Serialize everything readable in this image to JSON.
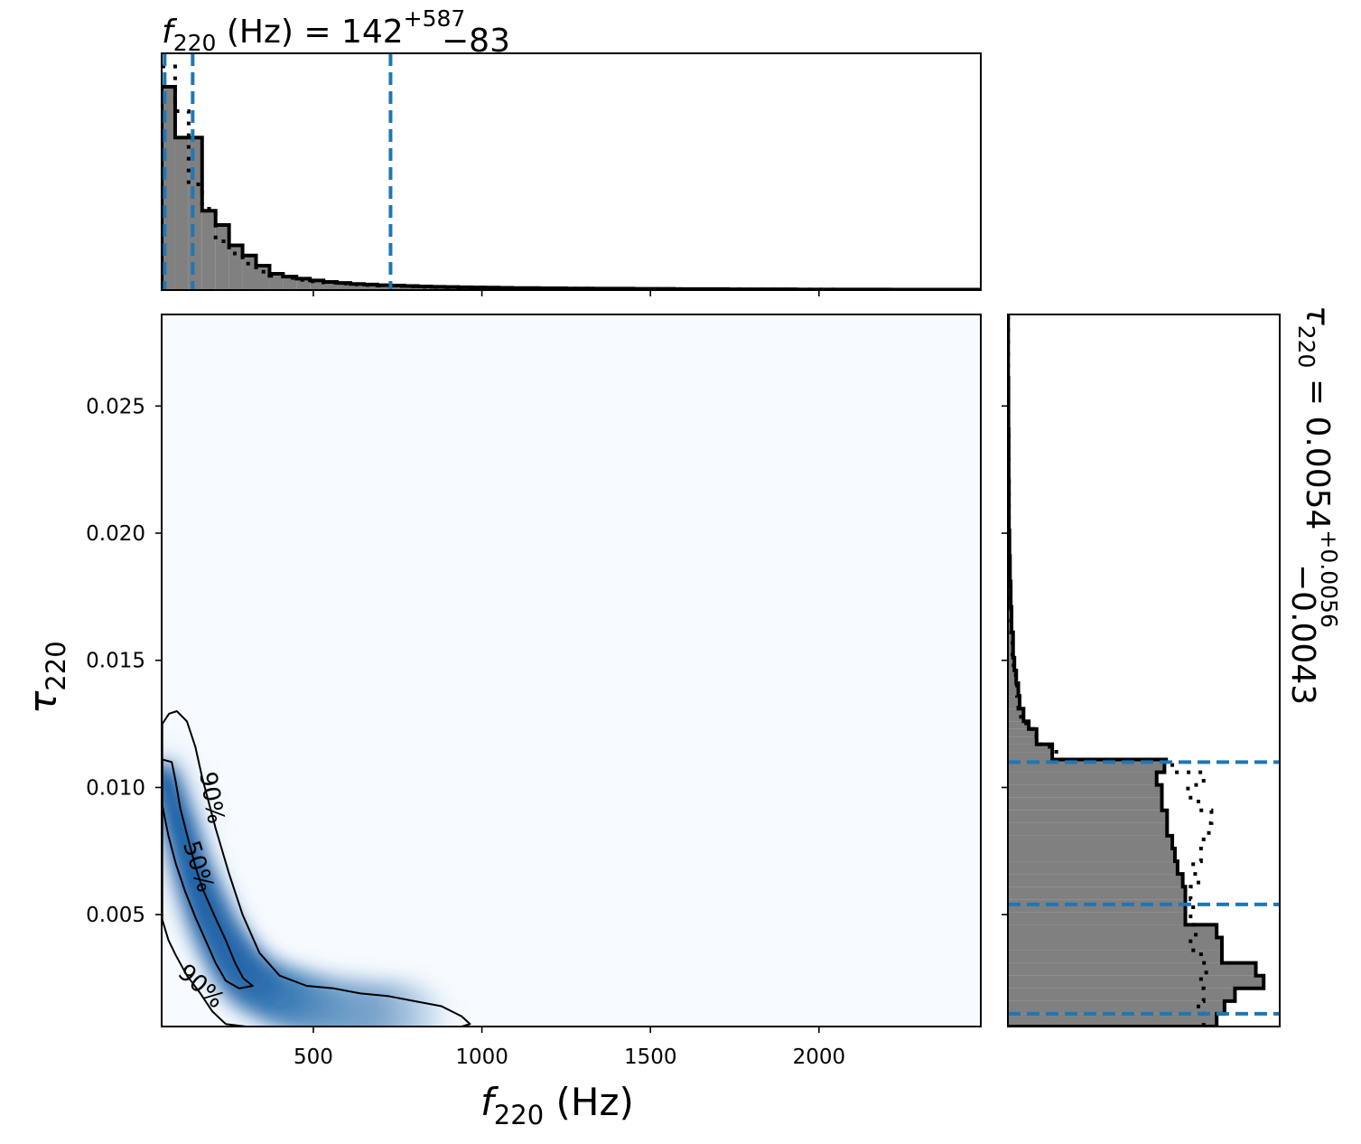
{
  "chart_data": [
    {
      "panel": "top-marginal",
      "type": "histogram",
      "title": {
        "symbol": "f",
        "sub": "220",
        "unit": " (Hz) = 142",
        "sup": "+587",
        "subscript_err": "−83"
      },
      "xlim": [
        50,
        2480
      ],
      "bin_edges": [
        50,
        90,
        130,
        170,
        210,
        250,
        290,
        330,
        370,
        410,
        450,
        490,
        530,
        570,
        610,
        650,
        690,
        730,
        770,
        810,
        850,
        890,
        930,
        970,
        1010,
        1050,
        1090,
        1130,
        1170,
        1210,
        1250,
        1290,
        1330,
        1370,
        1410,
        1450,
        1490,
        1530,
        1570,
        1610,
        1650,
        1690,
        1730,
        1770,
        1810,
        1850,
        1890,
        1930,
        1970,
        2010,
        2050,
        2090,
        2130,
        2170,
        2210,
        2250,
        2290,
        2330,
        2370,
        2410,
        2450,
        2480
      ],
      "values": [
        1.0,
        0.75,
        0.75,
        0.39,
        0.32,
        0.22,
        0.17,
        0.12,
        0.08,
        0.066,
        0.056,
        0.047,
        0.04,
        0.035,
        0.03,
        0.027,
        0.024,
        0.022,
        0.02,
        0.018,
        0.016,
        0.015,
        0.014,
        0.013,
        0.012,
        0.011,
        0.01,
        0.01,
        0.009,
        0.009,
        0.008,
        0.008,
        0.007,
        0.007,
        0.007,
        0.006,
        0.006,
        0.006,
        0.005,
        0.005,
        0.005,
        0.005,
        0.004,
        0.004,
        0.004,
        0.004,
        0.004,
        0.003,
        0.003,
        0.003,
        0.003,
        0.003,
        0.003,
        0.003,
        0.002,
        0.002,
        0.002,
        0.002,
        0.002,
        0.002,
        0.002
      ],
      "reference_values": [
        1.1,
        0.88,
        0.52,
        0.4,
        0.24,
        0.18,
        0.13,
        0.09,
        0.07,
        0.06,
        0.05,
        0.043,
        0.037,
        0.032,
        0.028,
        0.025,
        0.022,
        0.02,
        0.018,
        0.016,
        0.015,
        0.014,
        0.013,
        0.012,
        0.011,
        0.01,
        0.009,
        0.009,
        0.008,
        0.008,
        0.007,
        0.007,
        0.006,
        0.006,
        0.006,
        0.005,
        0.005,
        0.005,
        0.005,
        0.004,
        0.004,
        0.004,
        0.004,
        0.003,
        0.003,
        0.003,
        0.003,
        0.003,
        0.003,
        0.003,
        0.002,
        0.002,
        0.002,
        0.002,
        0.002,
        0.002,
        0.002,
        0.002,
        0.002,
        0.002,
        0.002
      ],
      "quantile_lines": [
        59,
        142,
        729
      ],
      "xticks": [
        500,
        1000,
        1500,
        2000
      ],
      "colors": {
        "fill": "#808080",
        "edge": "#000000",
        "quantile": "#1f77b4"
      }
    },
    {
      "panel": "joint-density",
      "type": "heatmap",
      "xlabel": {
        "symbol": "f",
        "sub": "220",
        "unit": " (Hz)"
      },
      "ylabel": {
        "symbol": "τ",
        "sub": "220"
      },
      "xlim": [
        50,
        2480
      ],
      "ylim": [
        0.0006,
        0.0286
      ],
      "xticks": [
        500,
        1000,
        1500,
        2000
      ],
      "xtick_labels": [
        "500",
        "1000",
        "1500",
        "2000"
      ],
      "yticks": [
        0.005,
        0.01,
        0.015,
        0.02,
        0.025
      ],
      "ytick_labels": [
        "0.005",
        "0.010",
        "0.015",
        "0.020",
        "0.025"
      ],
      "colormap": "Blues",
      "ridge": {
        "x": [
          55,
          80,
          110,
          140,
          170,
          200,
          240,
          280,
          320,
          400,
          500,
          650,
          800
        ],
        "y": [
          0.0105,
          0.0095,
          0.0082,
          0.0068,
          0.0057,
          0.0047,
          0.0037,
          0.0029,
          0.0023,
          0.0018,
          0.0014,
          0.0011,
          0.0009
        ]
      },
      "contours": [
        {
          "label": "50%",
          "level": 0.5,
          "x": [
            52,
            80,
            92,
            105,
            128,
            152,
            172,
            205,
            240,
            268,
            292,
            320,
            280,
            240,
            210,
            180,
            150,
            120,
            92,
            70,
            52
          ],
          "y": [
            0.0111,
            0.011,
            0.0102,
            0.0092,
            0.008,
            0.0068,
            0.006,
            0.005,
            0.004,
            0.0031,
            0.0025,
            0.0022,
            0.0021,
            0.0024,
            0.0031,
            0.004,
            0.0049,
            0.0059,
            0.007,
            0.0081,
            0.0093
          ]
        },
        {
          "label": "90%",
          "level": 0.9,
          "x": [
            52,
            72,
            95,
            125,
            150,
            170,
            210,
            250,
            290,
            340,
            400,
            480,
            560,
            640,
            720,
            800,
            880,
            940,
            965,
            940,
            800,
            600,
            430,
            300,
            240,
            200,
            165,
            125,
            92,
            70,
            52
          ],
          "y": [
            0.0125,
            0.0129,
            0.013,
            0.0126,
            0.0116,
            0.0104,
            0.0084,
            0.0066,
            0.005,
            0.0035,
            0.0026,
            0.0022,
            0.0021,
            0.0019,
            0.0018,
            0.0016,
            0.0014,
            0.001,
            0.0007,
            0.0006,
            0.0006,
            0.0006,
            0.0006,
            0.0006,
            0.0007,
            0.0012,
            0.0019,
            0.0026,
            0.0034,
            0.004,
            0.0048
          ]
        }
      ],
      "contour_labels": [
        {
          "text": "90%",
          "x": 200,
          "y": 0.0096,
          "rotate": 80
        },
        {
          "text": "50%",
          "x": 160,
          "y": 0.0069,
          "rotate": 72
        },
        {
          "text": "90%",
          "x": 168,
          "y": 0.0022,
          "rotate": 42
        }
      ]
    },
    {
      "panel": "right-marginal",
      "type": "histogram",
      "orientation": "horizontal",
      "title": {
        "symbol": "τ",
        "sub": "220",
        "unit": " = 0.0054",
        "sup": "+0.0056",
        "subscript_err": "−0.0043"
      },
      "ylim": [
        0.0006,
        0.0286
      ],
      "bin_edges": [
        0.0006,
        0.0011,
        0.0016,
        0.0021,
        0.0026,
        0.0031,
        0.0036,
        0.0041,
        0.0046,
        0.0051,
        0.0056,
        0.0061,
        0.0066,
        0.0071,
        0.0076,
        0.0081,
        0.0086,
        0.0091,
        0.0096,
        0.0101,
        0.0106,
        0.0111,
        0.0114,
        0.0117,
        0.012,
        0.0123,
        0.0126,
        0.0131,
        0.0136,
        0.0141,
        0.0146,
        0.0151,
        0.0161,
        0.0171,
        0.0181,
        0.0191,
        0.0201,
        0.0221,
        0.0241,
        0.0261,
        0.0286
      ],
      "values": [
        0.8,
        0.83,
        0.87,
        0.98,
        0.95,
        0.82,
        0.82,
        0.8,
        0.68,
        0.68,
        0.68,
        0.67,
        0.65,
        0.64,
        0.63,
        0.61,
        0.61,
        0.59,
        0.59,
        0.57,
        0.6,
        0.17,
        0.17,
        0.11,
        0.11,
        0.08,
        0.06,
        0.045,
        0.04,
        0.032,
        0.025,
        0.02,
        0.014,
        0.011,
        0.008,
        0.006,
        0.004,
        0.003,
        0.002,
        0.001
      ],
      "reference_values": [
        0.75,
        0.73,
        0.75,
        0.74,
        0.76,
        0.74,
        0.7,
        0.72,
        0.7,
        0.71,
        0.7,
        0.73,
        0.71,
        0.74,
        0.75,
        0.77,
        0.78,
        0.73,
        0.69,
        0.75,
        0.63,
        0.2,
        0.16,
        0.12,
        0.1,
        0.07,
        0.05,
        0.04,
        0.035,
        0.03,
        0.022,
        0.018,
        0.012,
        0.01,
        0.007,
        0.005,
        0.004,
        0.003,
        0.002,
        0.001
      ],
      "quantile_lines": [
        0.0011,
        0.0054,
        0.011
      ],
      "yticks": [
        0.005,
        0.01,
        0.015,
        0.02,
        0.025
      ],
      "colors": {
        "fill": "#808080",
        "edge": "#000000",
        "quantile": "#1f77b4"
      }
    }
  ]
}
